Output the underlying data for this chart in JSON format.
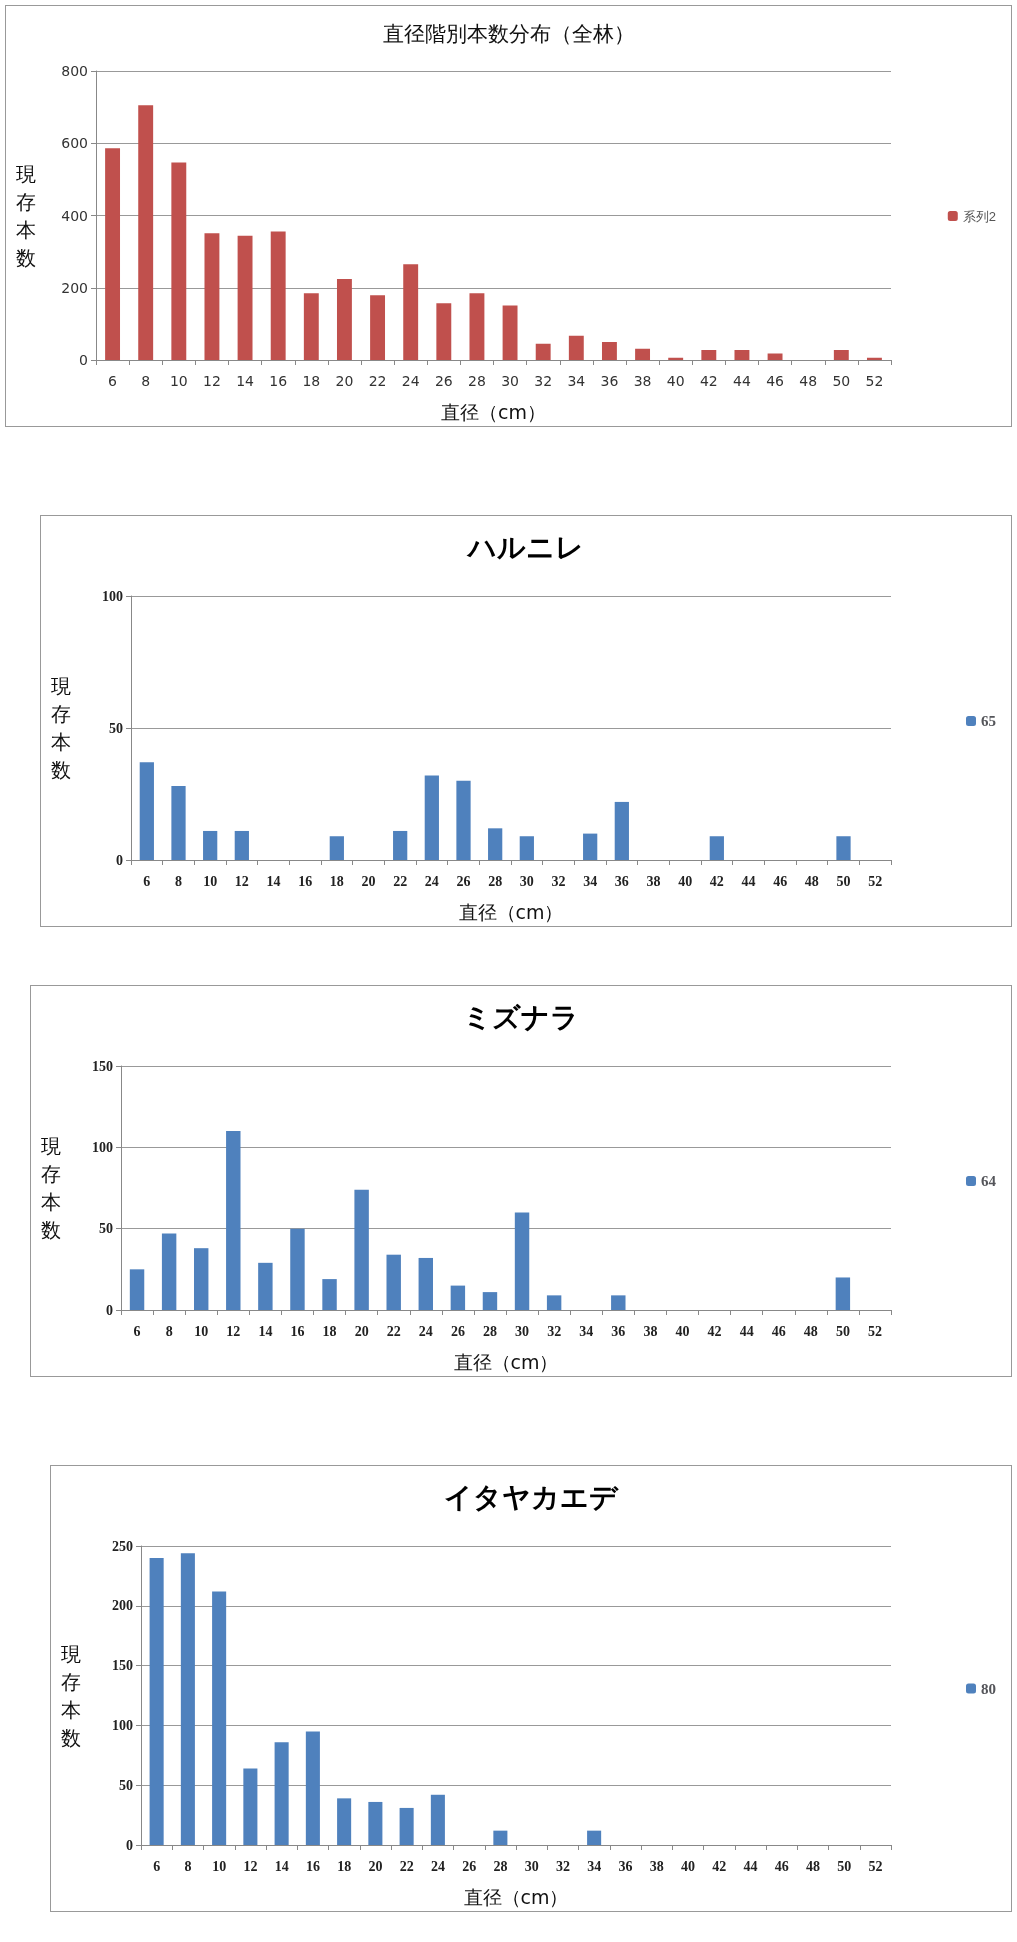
{
  "chart_data": [
    {
      "type": "bar",
      "title": "直径階別本数分布（全林）",
      "xlabel": "直径（cm）",
      "ylabel": "現存本数",
      "categories": [
        "6",
        "8",
        "10",
        "12",
        "14",
        "16",
        "18",
        "20",
        "22",
        "24",
        "26",
        "28",
        "30",
        "32",
        "34",
        "36",
        "38",
        "40",
        "42",
        "44",
        "46",
        "48",
        "50",
        "52"
      ],
      "series": [
        {
          "name": "系列2",
          "color": "#c0504d",
          "values": [
            586,
            705,
            547,
            351,
            344,
            356,
            185,
            224,
            179,
            265,
            157,
            185,
            151,
            45,
            67,
            50,
            31,
            6,
            28,
            28,
            18,
            0,
            28,
            6
          ]
        }
      ],
      "ylim": [
        0,
        800
      ],
      "yticks": [
        0,
        200,
        400,
        600,
        800
      ],
      "grid": "y",
      "legend": "right"
    },
    {
      "type": "bar",
      "title": "ハルニレ",
      "xlabel": "直径（cm）",
      "ylabel": "現存本数",
      "categories": [
        "6",
        "8",
        "10",
        "12",
        "14",
        "16",
        "18",
        "20",
        "22",
        "24",
        "26",
        "28",
        "30",
        "32",
        "34",
        "36",
        "38",
        "40",
        "42",
        "44",
        "46",
        "48",
        "50",
        "52"
      ],
      "series": [
        {
          "name": "65",
          "color": "#4f81bd",
          "values": [
            37,
            28,
            11,
            11,
            0,
            0,
            9,
            0,
            11,
            32,
            30,
            12,
            9,
            0,
            10,
            22,
            0,
            0,
            9,
            0,
            0,
            0,
            9,
            0
          ]
        }
      ],
      "ylim": [
        0,
        100
      ],
      "yticks": [
        0,
        50,
        100
      ],
      "grid": "y",
      "legend": "right"
    },
    {
      "type": "bar",
      "title": "ミズナラ",
      "xlabel": "直径（cm）",
      "ylabel": "現存本数",
      "categories": [
        "6",
        "8",
        "10",
        "12",
        "14",
        "16",
        "18",
        "20",
        "22",
        "24",
        "26",
        "28",
        "30",
        "32",
        "34",
        "36",
        "38",
        "40",
        "42",
        "44",
        "46",
        "48",
        "50",
        "52"
      ],
      "series": [
        {
          "name": "64",
          "color": "#4f81bd",
          "values": [
            25,
            47,
            38,
            110,
            29,
            50,
            19,
            74,
            34,
            32,
            15,
            11,
            60,
            9,
            0,
            9,
            0,
            0,
            0,
            0,
            0,
            0,
            20,
            0
          ]
        }
      ],
      "ylim": [
        0,
        150
      ],
      "yticks": [
        0,
        50,
        100,
        150
      ],
      "grid": "y",
      "legend": "right"
    },
    {
      "type": "bar",
      "title": "イタヤカエデ",
      "xlabel": "直径（cm）",
      "ylabel": "現存本数",
      "categories": [
        "6",
        "8",
        "10",
        "12",
        "14",
        "16",
        "18",
        "20",
        "22",
        "24",
        "26",
        "28",
        "30",
        "32",
        "34",
        "36",
        "38",
        "40",
        "42",
        "44",
        "46",
        "48",
        "50",
        "52"
      ],
      "series": [
        {
          "name": "80",
          "color": "#4f81bd",
          "values": [
            240,
            244,
            212,
            64,
            86,
            95,
            39,
            36,
            31,
            42,
            0,
            12,
            0,
            0,
            12,
            0,
            0,
            0,
            0,
            0,
            0,
            0,
            0,
            0
          ]
        }
      ],
      "ylim": [
        0,
        250
      ],
      "yticks": [
        0,
        50,
        100,
        150,
        200,
        250
      ],
      "grid": "y",
      "legend": "right"
    }
  ]
}
